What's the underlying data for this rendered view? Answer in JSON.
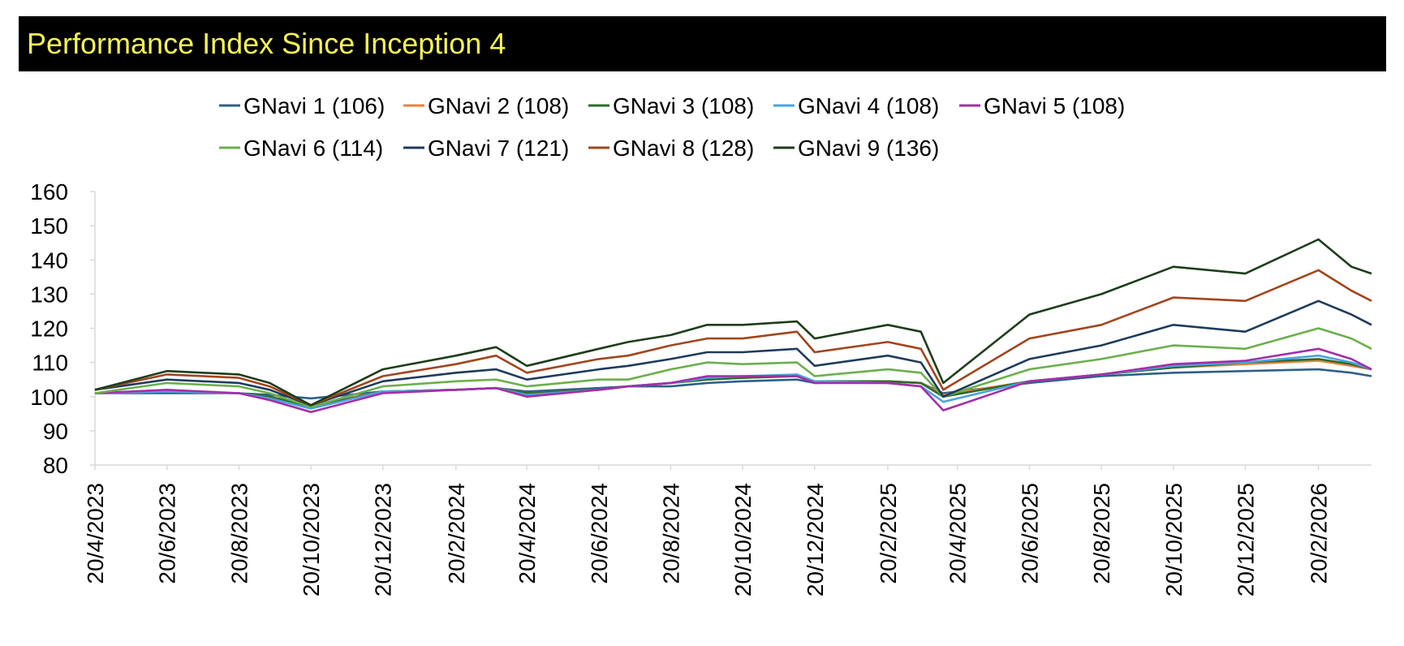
{
  "header": {
    "title": "Performance Index Since Inception 4",
    "title_color": "#f6f454",
    "background": "#000000"
  },
  "chart_data": {
    "type": "line",
    "title": "Performance Index Since Inception 4",
    "xlabel": "",
    "ylabel": "",
    "ylim": [
      80,
      160
    ],
    "yticks": [
      80,
      90,
      100,
      110,
      120,
      130,
      140,
      150,
      160
    ],
    "xlim": [
      "2023-04-20",
      "2026-04-06"
    ],
    "x_tick_labels": [
      "20/4/2023",
      "20/6/2023",
      "20/8/2023",
      "20/10/2023",
      "20/12/2023",
      "20/2/2024",
      "20/4/2024",
      "20/6/2024",
      "20/8/2024",
      "20/10/2024",
      "20/12/2024",
      "20/2/2025",
      "20/4/2025",
      "20/6/2025",
      "20/8/2025",
      "20/10/2025",
      "20/12/2025",
      "20/2/2026"
    ],
    "grid": false,
    "legend_position": "top",
    "x": [
      "2023-04-20",
      "2023-06-20",
      "2023-08-20",
      "2023-09-15",
      "2023-10-20",
      "2023-12-20",
      "2024-02-20",
      "2024-03-25",
      "2024-04-20",
      "2024-06-20",
      "2024-07-15",
      "2024-08-20",
      "2024-09-20",
      "2024-10-20",
      "2024-12-05",
      "2024-12-20",
      "2025-02-20",
      "2025-03-20",
      "2025-04-08",
      "2025-06-20",
      "2025-08-20",
      "2025-10-20",
      "2025-12-20",
      "2026-02-20",
      "2026-03-20",
      "2026-04-06"
    ],
    "series": [
      {
        "name": "GNavi 1 (106)",
        "color": "#2f5f8a",
        "values": [
          101,
          101,
          101,
          100.5,
          99.5,
          101.5,
          102,
          102.5,
          101.5,
          102.5,
          103,
          103,
          104,
          104.5,
          105,
          104,
          104.5,
          104,
          101,
          104,
          106,
          107,
          107.5,
          108,
          107,
          106
        ]
      },
      {
        "name": "GNavi 2 (108)",
        "color": "#e8833a",
        "values": [
          101,
          101.5,
          101,
          100,
          97.5,
          101.5,
          102,
          102.5,
          101,
          102,
          103,
          104,
          105,
          105.5,
          106,
          104.5,
          104.5,
          104,
          100.5,
          104.5,
          106.5,
          108.5,
          109.5,
          110.5,
          109,
          108
        ]
      },
      {
        "name": "GNavi 3 (108)",
        "color": "#2e6b2a",
        "values": [
          101,
          101.5,
          101,
          100,
          97,
          101.5,
          102,
          102.5,
          101,
          102,
          103,
          104,
          105,
          105.5,
          106,
          104.5,
          104.5,
          104,
          100,
          104.5,
          106.5,
          108.5,
          110,
          111,
          109.5,
          108
        ]
      },
      {
        "name": "GNavi 4 (108)",
        "color": "#4aa3df",
        "values": [
          101,
          101.5,
          101,
          99.5,
          96.5,
          101.5,
          102,
          102.5,
          100.5,
          102,
          103,
          104,
          105.5,
          106,
          106.5,
          104.5,
          104,
          103,
          98.5,
          104.5,
          106.5,
          109,
          110,
          112,
          110,
          108
        ]
      },
      {
        "name": "GNavi 5 (108)",
        "color": "#a32ea8",
        "values": [
          101,
          102,
          101,
          99,
          95.5,
          101,
          102,
          102.5,
          100,
          102,
          103,
          104,
          106,
          106,
          106,
          104,
          104,
          103,
          96,
          104.5,
          106.5,
          109.5,
          110.5,
          114,
          111,
          108
        ]
      },
      {
        "name": "GNavi 6 (114)",
        "color": "#6ab04c",
        "values": [
          101,
          104,
          103,
          101,
          97,
          103,
          104.5,
          105,
          103,
          105,
          105,
          108,
          110,
          109.5,
          110,
          106,
          108,
          107,
          100,
          108,
          111,
          115,
          114,
          120,
          117,
          114
        ]
      },
      {
        "name": "GNavi 7 (121)",
        "color": "#1f3b5c",
        "values": [
          102,
          105,
          104,
          102,
          97.5,
          104.5,
          107,
          108,
          105,
          108,
          109,
          111,
          113,
          113,
          114,
          109,
          112,
          110,
          100,
          111,
          115,
          121,
          119,
          128,
          124,
          121
        ]
      },
      {
        "name": "GNavi 8 (128)",
        "color": "#a0461e",
        "values": [
          102,
          106.5,
          105.5,
          103,
          97.5,
          106,
          109.5,
          112,
          107,
          111,
          112,
          115,
          117,
          117,
          119,
          113,
          116,
          114,
          102,
          117,
          121,
          129,
          128,
          137,
          131,
          128
        ]
      },
      {
        "name": "GNavi 9 (136)",
        "color": "#1d3d1a",
        "values": [
          102,
          107.5,
          106.5,
          104,
          97.5,
          108,
          112,
          114.5,
          109,
          114,
          116,
          118,
          121,
          121,
          122,
          117,
          121,
          119,
          104,
          124,
          130,
          138,
          136,
          146,
          138,
          136
        ]
      }
    ]
  }
}
